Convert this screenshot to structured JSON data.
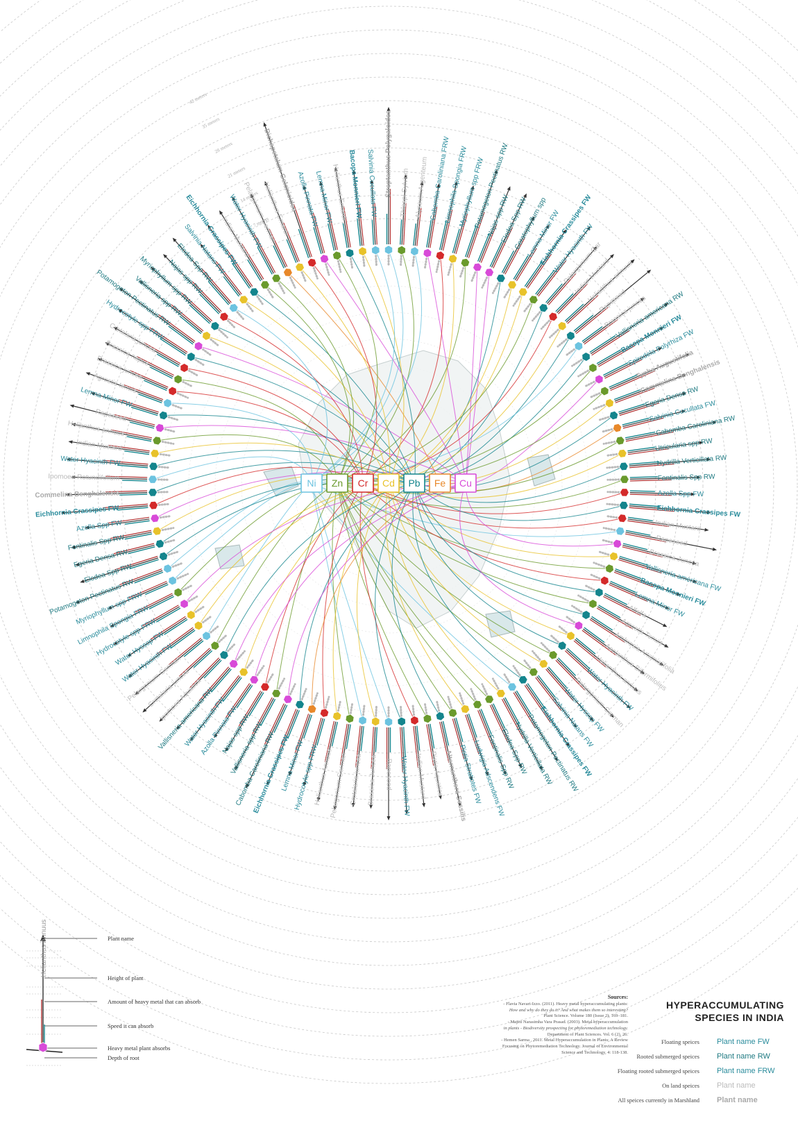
{
  "title_line1": "HYPERACCUMULATING",
  "title_line2": "SPECIES IN INDIA",
  "metals": [
    {
      "symbol": "Ni",
      "color": "#6cc3e0"
    },
    {
      "symbol": "Zn",
      "color": "#6a9a2c"
    },
    {
      "symbol": "Cr",
      "color": "#d42a2a"
    },
    {
      "symbol": "Cd",
      "color": "#e8c22a"
    },
    {
      "symbol": "Pb",
      "color": "#14858d"
    },
    {
      "symbol": "Fe",
      "color": "#e8882a"
    },
    {
      "symbol": "Cu",
      "color": "#d84ad8"
    }
  ],
  "category_colors": {
    "floating": "#2a8c9c",
    "rooted": "#1f7a82",
    "floating_rooted": "#2a8c9c",
    "land": "#bbbbbb",
    "marshland": "#aaaaaa"
  },
  "bar_colors": {
    "height": "#333333",
    "amount": "#b03030",
    "speed": "#14858d"
  },
  "key": {
    "rows": [
      {
        "desc": "Floating speices",
        "sample": "Plant name FW",
        "color": "#2a8c9c",
        "bold": false
      },
      {
        "desc": "Rooted submerged speices",
        "sample": "Plant name RW",
        "color": "#1f7a82",
        "bold": false
      },
      {
        "desc": "Floating rooted submerged speices",
        "sample": "Plant name FRW",
        "color": "#2a8c9c",
        "bold": false
      },
      {
        "desc": "On land speices",
        "sample": "Plant name",
        "color": "#bbbbbb",
        "bold": false
      },
      {
        "desc": "All speices currently in Marshland",
        "sample": "Plant name",
        "color": "#aaaaaa",
        "bold": true
      }
    ]
  },
  "legend": {
    "example_plant": "Helianthus Annuus",
    "plant_name": "Plant name",
    "height": "Height of plant",
    "amount": "Amount of heavy metal that can absorb",
    "speed": "Speed it can absorb",
    "metal": "Heavy metal plant absorbs",
    "root": "Depth of root"
  },
  "sources": {
    "title": "Sources:",
    "lines": [
      "- Flavia Navari-Izzo. (2011). Heavy metal hyperaccumulating plants:",
      "How and why do they do it? And what makes them so interesting?",
      "Plant Science. Volume 180 (Issue 2), 169–181.",
      "- Majeti Narasimha Vara Prasad. (2003). Metal hyperaccumulation",
      "in plants - Biodiversity prospecting for phytoremediation technology.",
      "Department of Plant Sciences. Vol. 6 (2), 26.",
      "- Hemen Sarma , 2011. Metal Hyperaccumulation in Plants: A Review",
      "Focusing on Phytoremediation Technology. Journal of Environmental",
      "Science and Technology, 4: 118-138."
    ]
  },
  "ring_labels": [
    "7 meters",
    "14 meters",
    "21 meters",
    "28 meters",
    "35 meters",
    "42 meters"
  ],
  "plants": [
    {
      "name": "Streptanthus Polygaloides",
      "cat": "marshland",
      "metal": "Ni",
      "h": 0.95,
      "a": 0.5,
      "s": 0.3
    },
    {
      "name": "Thlaspi Sylvium",
      "cat": "land",
      "metal": "Zn",
      "h": 0.35,
      "a": 0.3,
      "s": 0.2
    },
    {
      "name": "Alyssum Argenteum",
      "cat": "land",
      "metal": "Ni",
      "h": 0.3,
      "a": 0.25,
      "s": 0.15
    },
    {
      "name": "Cabomba Caroliniana FRW",
      "cat": "floating_rooted",
      "metal": "Cu",
      "h": 0.3,
      "a": 0.3,
      "s": 0.25
    },
    {
      "name": "Limnophila Spongia FRW",
      "cat": "floating_rooted",
      "metal": "Cr",
      "h": 0.35,
      "a": 0.3,
      "s": 0.3
    },
    {
      "name": "Myriophyllum spp FRW",
      "cat": "floating_rooted",
      "metal": "Cd",
      "h": 0.35,
      "a": 0.3,
      "s": 0.2
    },
    {
      "name": "Potamogeton Pectinatus RW",
      "cat": "rooted",
      "metal": "Zn",
      "h": 0.55,
      "a": 0.4,
      "s": 0.35
    },
    {
      "name": "Najas spp RW",
      "cat": "rooted",
      "metal": "Cu",
      "h": 0.45,
      "a": 0.3,
      "s": 0.3
    },
    {
      "name": "Elodea Spp RW",
      "cat": "rooted",
      "metal": "Cu",
      "h": 0.45,
      "a": 0.35,
      "s": 0.25
    },
    {
      "name": "Ceratophyllum spp",
      "cat": "rooted",
      "metal": "Pb",
      "h": 0.3,
      "a": 0.3,
      "s": 0.2
    },
    {
      "name": "Lemna Minor FW",
      "cat": "floating",
      "metal": "Cd",
      "h": 0.3,
      "a": 0.25,
      "s": 0.25
    },
    {
      "name": "Eichhornia Crassipes FW",
      "cat": "floating",
      "metal": "Cd",
      "h": 0.35,
      "a": 0.3,
      "s": 0.3
    },
    {
      "name": "Water Hyacinth FW",
      "cat": "floating",
      "metal": "Zn",
      "h": 0.5,
      "a": 0.35,
      "s": 0.3
    },
    {
      "name": "Pelargonium Gar",
      "cat": "land",
      "metal": "Pb",
      "h": 0.4,
      "a": 0.3,
      "s": 0.2
    },
    {
      "name": "Indian Mustard",
      "cat": "land",
      "metal": "Cr",
      "h": 0.45,
      "a": 0.3,
      "s": 0.2
    },
    {
      "name": "Helianthus annuus",
      "cat": "land",
      "metal": "Cd",
      "h": 0.55,
      "a": 0.3,
      "s": 0.2
    },
    {
      "name": "Rapeseed",
      "cat": "land",
      "metal": "Pb",
      "h": 0.6,
      "a": 0.3,
      "s": 0.2
    },
    {
      "name": "Brassica juncea",
      "cat": "land",
      "metal": "Ni",
      "h": 0.4,
      "a": 0.3,
      "s": 0.2
    },
    {
      "name": "Vallisneria americana RW",
      "cat": "rooted",
      "metal": "Pb",
      "h": 0.55,
      "a": 0.35,
      "s": 0.3
    },
    {
      "name": "Bacopa Monnieri FW",
      "cat": "floating",
      "metal": "Zn",
      "h": 0.4,
      "a": 0.3,
      "s": 0.25
    },
    {
      "name": "Spirodela Polyrhiza FW",
      "cat": "floating",
      "metal": "Cu",
      "h": 0.3,
      "a": 0.3,
      "s": 0.25
    },
    {
      "name": "Typha Augustifolia",
      "cat": "marshland",
      "metal": "Zn",
      "h": 0.5,
      "a": 0.4,
      "s": 0.3
    },
    {
      "name": "Commelina Benghalensis",
      "cat": "marshland",
      "metal": "Cd",
      "h": 0.4,
      "a": 0.3,
      "s": 0.25
    },
    {
      "name": "Egeria Densa RW",
      "cat": "rooted",
      "metal": "Pb",
      "h": 0.35,
      "a": 0.3,
      "s": 0.25
    },
    {
      "name": "Salvinia Cucullata FW",
      "cat": "floating",
      "metal": "Fe",
      "h": 0.3,
      "a": 0.3,
      "s": 0.25
    },
    {
      "name": "Cabomba Caroliniana RW",
      "cat": "rooted",
      "metal": "Zn",
      "h": 0.55,
      "a": 0.4,
      "s": 0.3
    },
    {
      "name": "Utricularia spp RW",
      "cat": "rooted",
      "metal": "Cd",
      "h": 0.4,
      "a": 0.3,
      "s": 0.25
    },
    {
      "name": "Hydrilla Verticillata RW",
      "cat": "rooted",
      "metal": "Pb",
      "h": 0.45,
      "a": 0.35,
      "s": 0.3
    },
    {
      "name": "Fontinalis Spp RW",
      "cat": "rooted",
      "metal": "Zn",
      "h": 0.35,
      "a": 0.3,
      "s": 0.25
    },
    {
      "name": "Azolla Spp FW",
      "cat": "floating",
      "metal": "Cr",
      "h": 0.3,
      "a": 0.3,
      "s": 0.2
    },
    {
      "name": "Eichhornia Crassipes FW",
      "cat": "floating",
      "metal": "Pb",
      "h": 0.45,
      "a": 0.35,
      "s": 0.3
    },
    {
      "name": "Indian Mustard",
      "cat": "land",
      "metal": "Cr",
      "h": 0.45,
      "a": 0.3,
      "s": 0.2
    },
    {
      "name": "Rapeseed",
      "cat": "land",
      "metal": "Ni",
      "h": 0.55,
      "a": 0.3,
      "s": 0.2
    },
    {
      "name": "Brassica Juncea",
      "cat": "land",
      "metal": "Cu",
      "h": 0.4,
      "a": 0.3,
      "s": 0.2
    },
    {
      "name": "Vallisneria americana FW",
      "cat": "floating",
      "metal": "Cd",
      "h": 0.45,
      "a": 0.35,
      "s": 0.3
    },
    {
      "name": "Bacopa Monnieri FW",
      "cat": "floating",
      "metal": "Zn",
      "h": 0.35,
      "a": 0.3,
      "s": 0.25
    },
    {
      "name": "Lemna Minor FW",
      "cat": "floating",
      "metal": "Cr",
      "h": 0.3,
      "a": 0.3,
      "s": 0.25
    },
    {
      "name": "Alfalfa",
      "cat": "land",
      "metal": "Pb",
      "h": 0.35,
      "a": 0.3,
      "s": 0.2
    },
    {
      "name": "Agrostis Tenuis",
      "cat": "land",
      "metal": "Zn",
      "h": 0.45,
      "a": 0.3,
      "s": 0.2
    },
    {
      "name": "Ambrosia Artemisiifolia",
      "cat": "land",
      "metal": "Pb",
      "h": 0.5,
      "a": 0.3,
      "s": 0.2
    },
    {
      "name": "Aeolanthus Biformifolius",
      "cat": "land",
      "metal": "Cu",
      "h": 0.4,
      "a": 0.3,
      "s": 0.2
    },
    {
      "name": "Helianthus annuus",
      "cat": "land",
      "metal": "Cd",
      "h": 0.45,
      "a": 0.3,
      "s": 0.2
    },
    {
      "name": "Water Hyacinth FW",
      "cat": "floating",
      "metal": "Pb",
      "h": 0.5,
      "a": 0.35,
      "s": 0.3
    },
    {
      "name": "Pelargonium German",
      "cat": "land",
      "metal": "Zn",
      "h": 0.45,
      "a": 0.3,
      "s": 0.2
    },
    {
      "name": "Water Hyssop FW",
      "cat": "floating",
      "metal": "Cd",
      "h": 0.35,
      "a": 0.3,
      "s": 0.25
    },
    {
      "name": "Salvinia Natans FW",
      "cat": "floating",
      "metal": "Zn",
      "h": 0.3,
      "a": 0.3,
      "s": 0.25
    },
    {
      "name": "Eichhornia Crassipes FW",
      "cat": "floating",
      "metal": "Pb",
      "h": 0.4,
      "a": 0.35,
      "s": 0.3
    },
    {
      "name": "Potamogeton Pectinatus RW",
      "cat": "rooted",
      "metal": "Ni",
      "h": 0.45,
      "a": 0.3,
      "s": 0.25
    },
    {
      "name": "Hydrilla Verticillata RW",
      "cat": "rooted",
      "metal": "Cd",
      "h": 0.45,
      "a": 0.35,
      "s": 0.3
    },
    {
      "name": "Elodea Spp RW",
      "cat": "rooted",
      "metal": "Zn",
      "h": 0.35,
      "a": 0.3,
      "s": 0.25
    },
    {
      "name": "Fontinalis Spp RW",
      "cat": "rooted",
      "metal": "Zn",
      "h": 0.35,
      "a": 0.3,
      "s": 0.25
    },
    {
      "name": "Ludwigia Adscendens FW",
      "cat": "floating",
      "metal": "Cd",
      "h": 0.3,
      "a": 0.3,
      "s": 0.2
    },
    {
      "name": "Pistia Stratiotes FW",
      "cat": "floating",
      "metal": "Zn",
      "h": 0.3,
      "a": 0.3,
      "s": 0.2
    },
    {
      "name": "Alternanthera Sessilis",
      "cat": "marshland",
      "metal": "Pb",
      "h": 0.5,
      "a": 0.3,
      "s": 0.2
    },
    {
      "name": "Pistia Aquatica",
      "cat": "land",
      "metal": "Zn",
      "h": 0.4,
      "a": 0.3,
      "s": 0.2
    },
    {
      "name": "Indian Mustard",
      "cat": "land",
      "metal": "Cr",
      "h": 0.45,
      "a": 0.3,
      "s": 0.2
    },
    {
      "name": "Water Hyacinth FW",
      "cat": "floating",
      "metal": "Pb",
      "h": 0.5,
      "a": 0.35,
      "s": 0.3
    },
    {
      "name": "Rapeseed",
      "cat": "land",
      "metal": "Ni",
      "h": 0.55,
      "a": 0.3,
      "s": 0.2
    },
    {
      "name": "Brassica Juncea",
      "cat": "land",
      "metal": "Cd",
      "h": 0.45,
      "a": 0.3,
      "s": 0.2
    },
    {
      "name": "Crotalaria juncea",
      "cat": "land",
      "metal": "Ni",
      "h": 0.45,
      "a": 0.3,
      "s": 0.2
    },
    {
      "name": "Pelargonium German",
      "cat": "land",
      "metal": "Zn",
      "h": 0.5,
      "a": 0.3,
      "s": 0.2
    },
    {
      "name": "Helianthus Annuus",
      "cat": "land",
      "metal": "Cd",
      "h": 0.45,
      "a": 0.3,
      "s": 0.2
    },
    {
      "name": "Hydrocotyle spp FRW",
      "cat": "floating_rooted",
      "metal": "Cr",
      "h": 0.35,
      "a": 0.3,
      "s": 0.25
    },
    {
      "name": "Lemna Minor FW",
      "cat": "floating",
      "metal": "Fe",
      "h": 0.3,
      "a": 0.3,
      "s": 0.2
    },
    {
      "name": "Eichhornia Crassipes FW",
      "cat": "floating",
      "metal": "Pb",
      "h": 0.45,
      "a": 0.35,
      "s": 0.3
    },
    {
      "name": "Cabomba Caroliniana RW",
      "cat": "rooted",
      "metal": "Cu",
      "h": 0.55,
      "a": 0.35,
      "s": 0.3
    },
    {
      "name": "Vallisneria spp RW",
      "cat": "rooted",
      "metal": "Zn",
      "h": 0.45,
      "a": 0.3,
      "s": 0.3
    },
    {
      "name": "Najas spp RW",
      "cat": "rooted",
      "metal": "Cr",
      "h": 0.35,
      "a": 0.3,
      "s": 0.25
    },
    {
      "name": "Azolla Pinnata FW",
      "cat": "floating",
      "metal": "Cu",
      "h": 0.3,
      "a": 0.3,
      "s": 0.25
    },
    {
      "name": "Water Hyacinth FW",
      "cat": "floating",
      "metal": "Cd",
      "h": 0.45,
      "a": 0.35,
      "s": 0.3
    },
    {
      "name": "Vallisneria americana RW",
      "cat": "rooted",
      "metal": "Cu",
      "h": 0.45,
      "a": 0.35,
      "s": 0.3
    },
    {
      "name": "Ipomoea Aquatica",
      "cat": "land",
      "metal": "Pb",
      "h": 0.5,
      "a": 0.3,
      "s": 0.2
    },
    {
      "name": "Crotalaria juncea",
      "cat": "land",
      "metal": "Zn",
      "h": 0.55,
      "a": 0.3,
      "s": 0.2
    },
    {
      "name": "Pelargonium German",
      "cat": "land",
      "metal": "Ni",
      "h": 0.5,
      "a": 0.3,
      "s": 0.2
    },
    {
      "name": "Water Hyacinth FW",
      "cat": "floating",
      "metal": "Cd",
      "h": 0.45,
      "a": 0.35,
      "s": 0.3
    },
    {
      "name": "Water Hyssop FW",
      "cat": "floating",
      "metal": "Cd",
      "h": 0.35,
      "a": 0.3,
      "s": 0.25
    },
    {
      "name": "Hydrocotyle spp FRW",
      "cat": "floating_rooted",
      "metal": "Cu",
      "h": 0.4,
      "a": 0.3,
      "s": 0.25
    },
    {
      "name": "Limnophila Spongia FRW",
      "cat": "floating_rooted",
      "metal": "Zn",
      "h": 0.35,
      "a": 0.3,
      "s": 0.25
    },
    {
      "name": "Myriophyllum spp FRW",
      "cat": "floating_rooted",
      "metal": "Ni",
      "h": 0.3,
      "a": 0.3,
      "s": 0.2
    },
    {
      "name": "Potamogeton Pectinatus RW",
      "cat": "rooted",
      "metal": "Ni",
      "h": 0.55,
      "a": 0.35,
      "s": 0.3
    },
    {
      "name": "Elodea Spp RW",
      "cat": "rooted",
      "metal": "Pb",
      "h": 0.45,
      "a": 0.35,
      "s": 0.3
    },
    {
      "name": "Egeria Densa RW",
      "cat": "rooted",
      "metal": "Pb",
      "h": 0.45,
      "a": 0.3,
      "s": 0.25
    },
    {
      "name": "Fontinalis Spp RW",
      "cat": "rooted",
      "metal": "Cd",
      "h": 0.45,
      "a": 0.3,
      "s": 0.25
    },
    {
      "name": "Azolla Spp FW",
      "cat": "floating",
      "metal": "Cu",
      "h": 0.3,
      "a": 0.3,
      "s": 0.2
    },
    {
      "name": "Eichhornia Crassipes FW",
      "cat": "floating",
      "metal": "Cr",
      "h": 0.5,
      "a": 0.35,
      "s": 0.3
    },
    {
      "name": "Commelina Benghalensis",
      "cat": "marshland",
      "metal": "Pb",
      "h": 0.45,
      "a": 0.3,
      "s": 0.25
    },
    {
      "name": "Ipomoea Rotundifolium",
      "cat": "land",
      "metal": "Ni",
      "h": 0.4,
      "a": 0.3,
      "s": 0.2
    },
    {
      "name": "Water Hyacinth FW",
      "cat": "floating",
      "metal": "Pb",
      "h": 0.45,
      "a": 0.35,
      "s": 0.3
    },
    {
      "name": "Indian Mustard",
      "cat": "land",
      "metal": "Cd",
      "h": 0.45,
      "a": 0.3,
      "s": 0.2
    },
    {
      "name": "Helianthus annuus",
      "cat": "land",
      "metal": "Zn",
      "h": 0.45,
      "a": 0.3,
      "s": 0.2
    },
    {
      "name": "Rapeseed",
      "cat": "land",
      "metal": "Cu",
      "h": 0.5,
      "a": 0.3,
      "s": 0.2
    },
    {
      "name": "Lemna Minor FW",
      "cat": "floating",
      "metal": "Pb",
      "h": 0.35,
      "a": 0.3,
      "s": 0.25
    },
    {
      "name": "Agrostis tenuis",
      "cat": "land",
      "metal": "Ni",
      "h": 0.45,
      "a": 0.3,
      "s": 0.2
    },
    {
      "name": "Brassica juncea",
      "cat": "land",
      "metal": "Cr",
      "h": 0.4,
      "a": 0.3,
      "s": 0.2
    },
    {
      "name": "Brassica napus",
      "cat": "land",
      "metal": "Zn",
      "h": 0.4,
      "a": 0.3,
      "s": 0.2
    },
    {
      "name": "Crotalaria juncea",
      "cat": "land",
      "metal": "Cr",
      "h": 0.4,
      "a": 0.3,
      "s": 0.2
    },
    {
      "name": "Hydrocotyle spp FRW",
      "cat": "floating_rooted",
      "metal": "Pb",
      "h": 0.45,
      "a": 0.35,
      "s": 0.3
    },
    {
      "name": "Potamogeton Pectinatus RW",
      "cat": "rooted",
      "metal": "Cu",
      "h": 0.55,
      "a": 0.35,
      "s": 0.3
    },
    {
      "name": "Vallisneria spp RW",
      "cat": "rooted",
      "metal": "Cd",
      "h": 0.45,
      "a": 0.3,
      "s": 0.25
    },
    {
      "name": "Myriophyllum spp RW",
      "cat": "rooted",
      "metal": "Pb",
      "h": 0.45,
      "a": 0.3,
      "s": 0.25
    },
    {
      "name": "Najas spp RW",
      "cat": "rooted",
      "metal": "Cr",
      "h": 0.45,
      "a": 0.3,
      "s": 0.25
    },
    {
      "name": "Elodea Spp RW",
      "cat": "rooted",
      "metal": "Ni",
      "h": 0.5,
      "a": 0.35,
      "s": 0.3
    },
    {
      "name": "Salvinia Natans FW",
      "cat": "floating",
      "metal": "Cd",
      "h": 0.3,
      "a": 0.3,
      "s": 0.2
    },
    {
      "name": "Eichhornia Crassipes FW",
      "cat": "floating",
      "metal": "Pb",
      "h": 0.4,
      "a": 0.35,
      "s": 0.3
    },
    {
      "name": "Indian Mustard",
      "cat": "land",
      "metal": "Zn",
      "h": 0.45,
      "a": 0.3,
      "s": 0.2
    },
    {
      "name": "Water Hyacinth FW",
      "cat": "floating",
      "metal": "Zn",
      "h": 0.5,
      "a": 0.35,
      "s": 0.3
    },
    {
      "name": "Pelargonium German",
      "cat": "land",
      "metal": "Fe",
      "h": 0.45,
      "a": 0.3,
      "s": 0.2
    },
    {
      "name": "Helianthus Emardi",
      "cat": "land",
      "metal": "Cd",
      "h": 0.5,
      "a": 0.3,
      "s": 0.2
    },
    {
      "name": "Dichapetalum Gelonioides",
      "cat": "marshland",
      "metal": "Cr",
      "h": 1.0,
      "a": 0.5,
      "s": 0.3
    },
    {
      "name": "Azolla Pinnata FW",
      "cat": "floating",
      "metal": "Cu",
      "h": 0.35,
      "a": 0.3,
      "s": 0.25
    },
    {
      "name": "Lemna Minor FW",
      "cat": "floating",
      "metal": "Zn",
      "h": 0.35,
      "a": 0.3,
      "s": 0.25
    },
    {
      "name": "Helianthus Emardi",
      "cat": "land",
      "metal": "Pb",
      "h": 0.45,
      "a": 0.3,
      "s": 0.2
    },
    {
      "name": "Bacopa Monnieri FW",
      "cat": "floating",
      "metal": "Cd",
      "h": 0.4,
      "a": 0.3,
      "s": 0.25
    },
    {
      "name": "Salvinia Cucullata FW",
      "cat": "floating",
      "metal": "Ni",
      "h": 0.3,
      "a": 0.3,
      "s": 0.2
    }
  ]
}
